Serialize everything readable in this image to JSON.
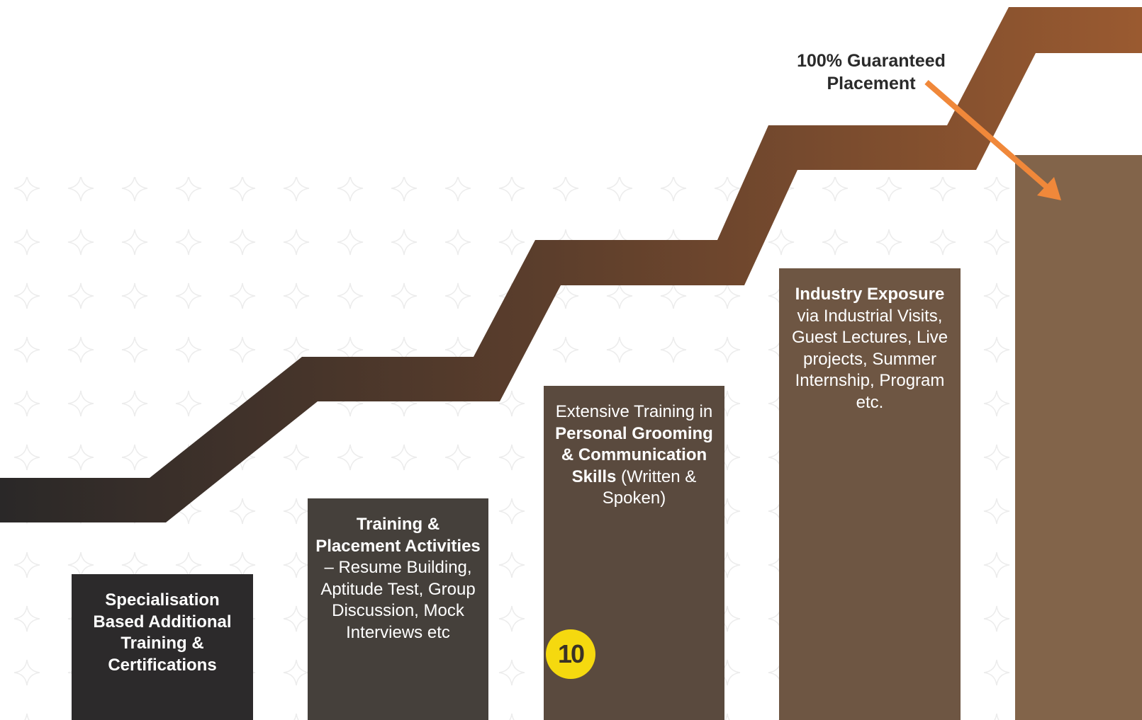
{
  "callout": {
    "lines": [
      "100% Guaranteed",
      "Placement"
    ]
  },
  "badge": {
    "text": "10",
    "color": "#f5d90f"
  },
  "columns": [
    {
      "color": "#2c2a2b",
      "segments": [
        {
          "bold": true,
          "text": "Specialisation Based Additional Training & Certifications"
        }
      ]
    },
    {
      "color": "#45403b",
      "segments": [
        {
          "bold": true,
          "text": "Training & Placement Activities"
        },
        {
          "bold": false,
          "text": " – Resume Building, Aptitude Test, Group Discussion, Mock Interviews etc"
        }
      ]
    },
    {
      "color": "#5a4a3e",
      "segments": [
        {
          "bold": false,
          "text": "Extensive Training in "
        },
        {
          "bold": true,
          "text": "Personal Grooming & Communication Skills"
        },
        {
          "bold": false,
          "text": " (Written & Spoken)"
        }
      ]
    },
    {
      "color": "#6e5643",
      "segments": [
        {
          "bold": true,
          "text": "Industry Exposure"
        },
        {
          "bold": false,
          "text": " via Industrial Visits, Guest Lectures, Live projects, Summer Internship, Program etc."
        }
      ]
    },
    {
      "color": "#82644a",
      "segments": []
    }
  ]
}
